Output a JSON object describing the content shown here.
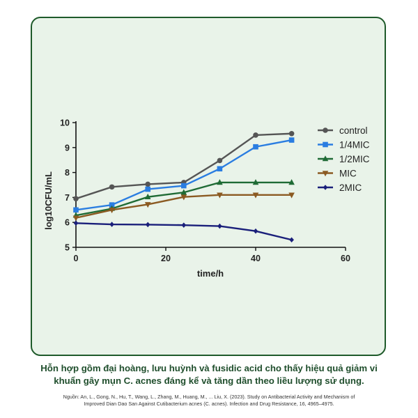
{
  "chart_data": {
    "type": "line",
    "title": "",
    "xlabel": "time/h",
    "ylabel": "log10CFU/mL",
    "xlim": [
      0,
      60
    ],
    "ylim": [
      5,
      10
    ],
    "xticks": [
      0,
      20,
      40,
      60
    ],
    "yticks": [
      5,
      6,
      7,
      8,
      9,
      10
    ],
    "legend_position": "top-right",
    "x": [
      0,
      8,
      16,
      24,
      32,
      40,
      48
    ],
    "series": [
      {
        "name": "control",
        "marker": "circle",
        "color": "#555555",
        "values": [
          6.95,
          7.42,
          7.53,
          7.6,
          8.48,
          9.5,
          9.56
        ]
      },
      {
        "name": "1/4MIC",
        "marker": "square",
        "color": "#2a7de1",
        "values": [
          6.5,
          6.7,
          7.33,
          7.47,
          8.15,
          9.03,
          9.3
        ]
      },
      {
        "name": "1/2MIC",
        "marker": "triangle-up",
        "color": "#1f6b35",
        "values": [
          6.28,
          6.55,
          7.02,
          7.2,
          7.6,
          7.6,
          7.6
        ]
      },
      {
        "name": "MIC",
        "marker": "triangle-down",
        "color": "#8b5a22",
        "values": [
          6.18,
          6.5,
          6.72,
          7.02,
          7.1,
          7.1,
          7.1
        ]
      },
      {
        "name": "2MIC",
        "marker": "diamond",
        "color": "#1a1f7a",
        "values": [
          5.97,
          5.92,
          5.91,
          5.89,
          5.85,
          5.65,
          5.3
        ]
      }
    ]
  },
  "caption": {
    "line1": "Hỗn hợp gồm đại hoàng, lưu huỳnh và fusidic acid cho thấy hiệu quả giảm vi",
    "line2": "khuẩn gây mụn C. acnes đáng kể và tăng dần theo liều lượng sử dụng."
  },
  "source": {
    "line1": "Nguồn: An, L., Gong, N., Hu, T., Wang, L., Zhang, M., Huang, M., ... Liu, X. (2023). Study on Antibacterial Activity and Mechanism of",
    "line2": "Improved Dian Dao San Against Cutibacterium acnes (C. acnes). Infection and Drug Resistance, 16, 4965–4975."
  }
}
